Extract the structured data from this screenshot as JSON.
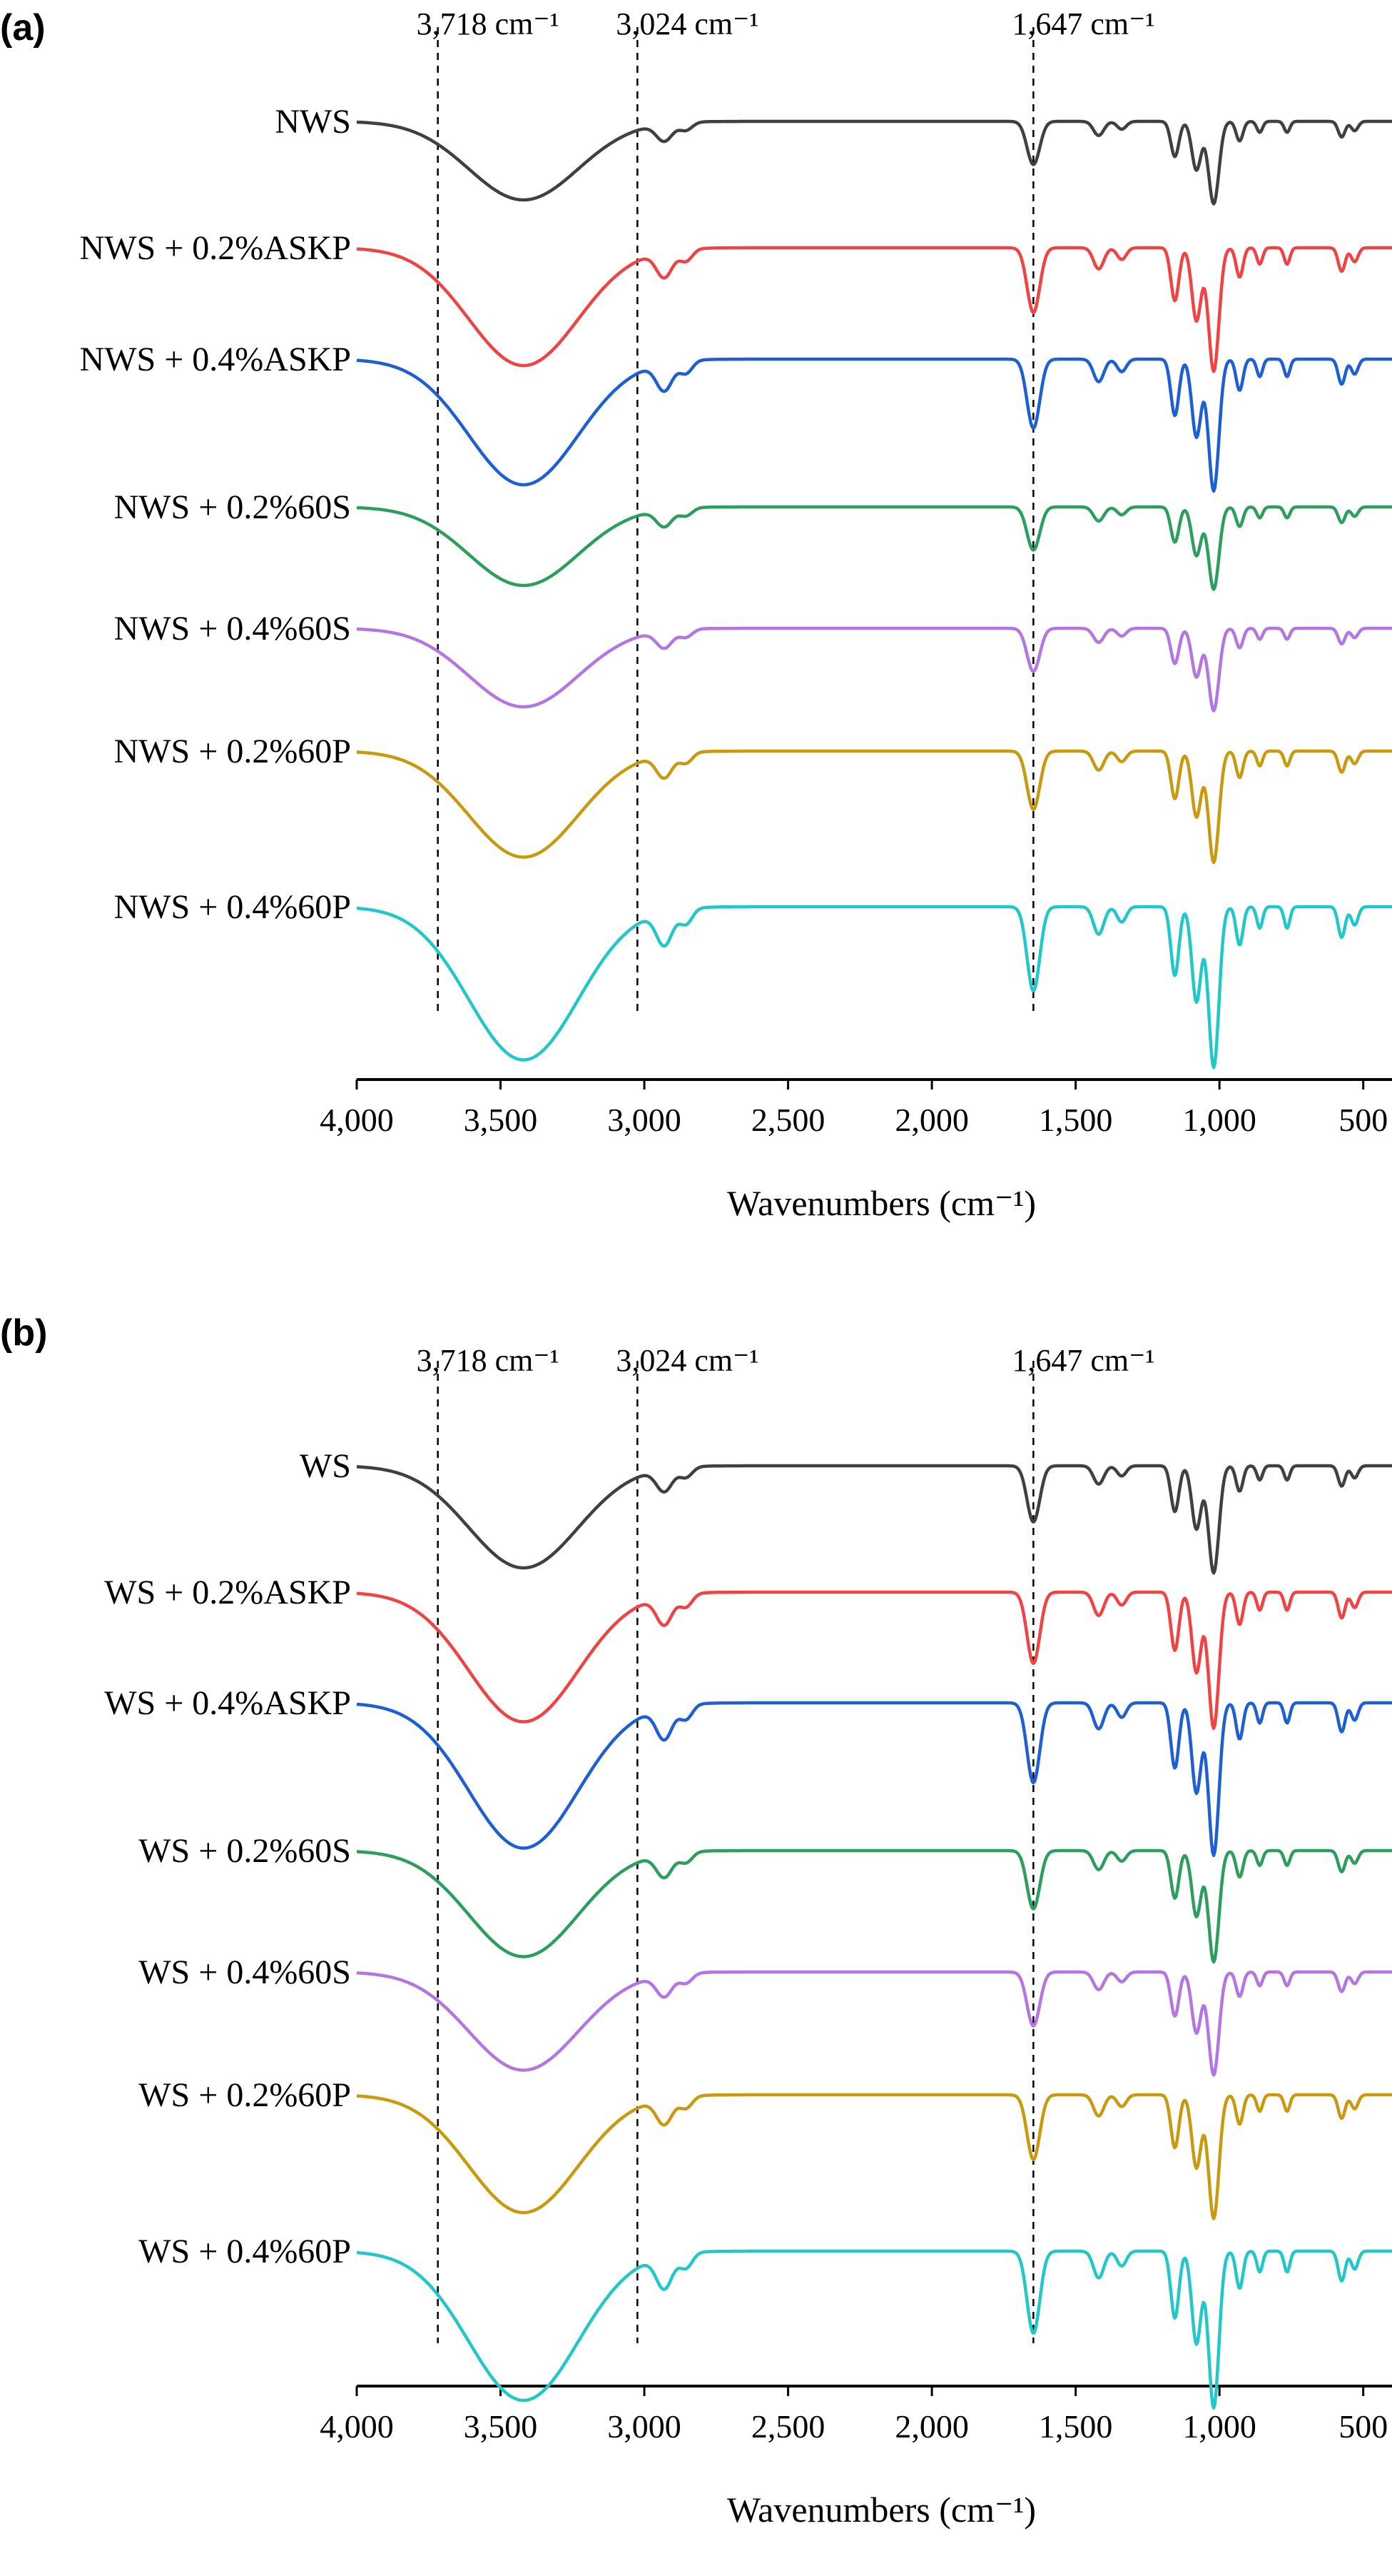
{
  "figure": {
    "panels": [
      {
        "letter": "(a)"
      },
      {
        "letter": "(b)"
      }
    ]
  },
  "chart_data": [
    {
      "type": "line",
      "panel": "(a)",
      "xlabel": "Wavenumbers (cm⁻¹)",
      "ylabel": "",
      "x_reversed": true,
      "xlim": [
        4000,
        400
      ],
      "x_ticks": [
        4000,
        3500,
        3000,
        2500,
        2000,
        1500,
        1000,
        500
      ],
      "x_tick_labels": [
        "4,000",
        "3,500",
        "3,000",
        "2,500",
        "2,000",
        "1,500",
        "1,000",
        "500"
      ],
      "y_ticks_shown": false,
      "reference_lines": [
        {
          "x": 3718,
          "label": "3,718 cm⁻¹"
        },
        {
          "x": 3024,
          "label": "3,024 cm⁻¹"
        },
        {
          "x": 1647,
          "label": "1,647 cm⁻¹"
        }
      ],
      "series": [
        {
          "name": "NWS",
          "color": "#404040",
          "scale": 1.0
        },
        {
          "name": "NWS + 0.2%ASKP",
          "color": "#ee4444",
          "scale": 1.5
        },
        {
          "name": "NWS + 0.4%ASKP",
          "color": "#1e5fd4",
          "scale": 1.6
        },
        {
          "name": "NWS + 0.2%60S",
          "color": "#2e9e5e",
          "scale": 1.0
        },
        {
          "name": "NWS + 0.4%60S",
          "color": "#b476e0",
          "scale": 1.0
        },
        {
          "name": "NWS + 0.2%60P",
          "color": "#c89a10",
          "scale": 1.35
        },
        {
          "name": "NWS + 0.4%60P",
          "color": "#22c8c8",
          "scale": 1.95
        }
      ]
    },
    {
      "type": "line",
      "panel": "(b)",
      "xlabel": "Wavenumbers (cm⁻¹)",
      "ylabel": "",
      "x_reversed": true,
      "xlim": [
        4000,
        400
      ],
      "x_ticks": [
        4000,
        3500,
        3000,
        2500,
        2000,
        1500,
        1000,
        500
      ],
      "x_tick_labels": [
        "4,000",
        "3,500",
        "3,000",
        "2,500",
        "2,000",
        "1,500",
        "1,000",
        "500"
      ],
      "y_ticks_shown": false,
      "reference_lines": [
        {
          "x": 3718,
          "label": "3,718 cm⁻¹"
        },
        {
          "x": 3024,
          "label": "3,024 cm⁻¹"
        },
        {
          "x": 1647,
          "label": "1,647 cm⁻¹"
        }
      ],
      "series": [
        {
          "name": "WS",
          "color": "#404040",
          "scale": 1.3
        },
        {
          "name": "WS + 0.2%ASKP",
          "color": "#ee4444",
          "scale": 1.65
        },
        {
          "name": "WS + 0.4%ASKP",
          "color": "#1e5fd4",
          "scale": 1.85
        },
        {
          "name": "WS + 0.2%60S",
          "color": "#2e9e5e",
          "scale": 1.35
        },
        {
          "name": "WS + 0.4%60S",
          "color": "#b476e0",
          "scale": 1.25
        },
        {
          "name": "WS + 0.2%60P",
          "color": "#c89a10",
          "scale": 1.5
        },
        {
          "name": "WS + 0.4%60P",
          "color": "#22c8c8",
          "scale": 1.9
        }
      ]
    }
  ]
}
